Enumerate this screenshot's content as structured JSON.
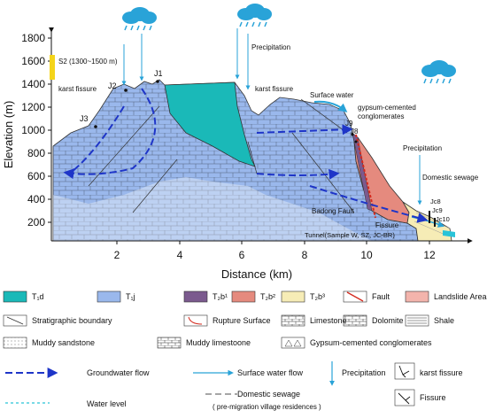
{
  "axes": {
    "ylabel": "Elevation (m)",
    "xlabel": "Distance (km)",
    "yticks": [
      "200",
      "400",
      "600",
      "800",
      "1000",
      "1200",
      "1400",
      "1600",
      "1800"
    ],
    "xticks": [
      "2",
      "4",
      "6",
      "8",
      "10",
      "12"
    ]
  },
  "annotations": {
    "s2": "S2 (1300~1500 m)",
    "karst_fissure_left": "karst fissure",
    "karst_fissure_right": "karst fissure",
    "j1": "J1",
    "j2": "J2",
    "j3": "J3",
    "j8": "J8",
    "j9": "J9",
    "precipitation_top": "Precipitation",
    "precipitation_right": "Precipitation",
    "surface_water": "Surface water",
    "gypsum_line1": "gypsum-cemented",
    "gypsum_line2": "conglomerates",
    "domestic_sewage": "Domestic sewage",
    "jc8": "Jc8",
    "jc9": "Jc9",
    "jc10": "Jc10",
    "badong_fault": "Badong Fault",
    "fissure": "Fissure",
    "tunnel": "Tunnel(Sample W, SZ, JC-BR)"
  },
  "legend": {
    "t1d": "T₁d",
    "t1j": "T₁j",
    "t2b1": "T₂b¹",
    "t2b2": "T₂b²",
    "t2b3": "T₂b³",
    "fault": "Fault",
    "landslide": "Landslide Area",
    "strat_boundary": "Stratigraphic boundary",
    "rupture": "Rupture Surface",
    "limestone": "Limestone",
    "dolomite": "Dolomite",
    "shale": "Shale",
    "muddy_sandstone": "Muddy sandstone",
    "muddy_limestone": "Muddy limestoone",
    "gypsum": "Gypsum-cemented conglomerates",
    "groundwater": "Groundwater flow",
    "surface_flow": "Surface water flow",
    "precipitation": "Precipitation",
    "karst_fissure": "karst fissure",
    "water_level": "Water level",
    "domestic_sewage": "Domestic sewage",
    "sewage_note": "( pre-migration village residences )",
    "fissure": "Fissure"
  },
  "colors": {
    "t1d": "#1ab9b8",
    "t1j": "#9ab8ec",
    "t2b1": "#7b5a8e",
    "t2b2": "#e58a7e",
    "t2b3": "#f6ecb6",
    "landslide": "#f3b4ac",
    "groundwater": "#1e35c8",
    "surface": "#29a3d8",
    "s2_marker": "#f4d41a",
    "fault": "#d42a1e"
  }
}
